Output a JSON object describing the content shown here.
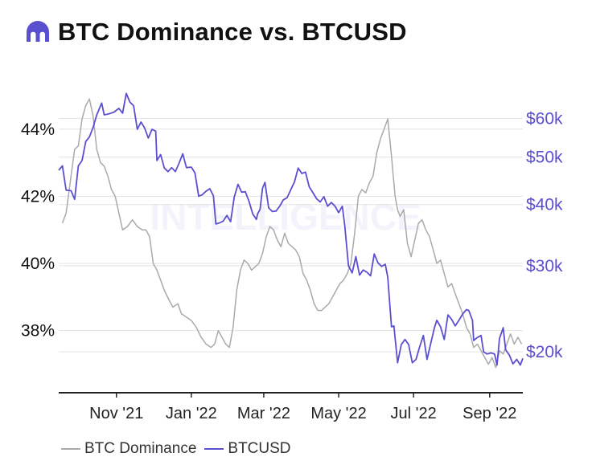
{
  "header": {
    "title": "BTC Dominance vs. BTCUSD",
    "logo_icon": "intelligence-logo-icon",
    "brand_color": "#5a4fcf"
  },
  "watermark": {
    "text": "INTELLIGENCE"
  },
  "chart_data": {
    "type": "line",
    "title": "BTC Dominance vs. BTCUSD",
    "x_ticks": [
      "Nov '21",
      "Jan '22",
      "Mar '22",
      "May '22",
      "Jul '22",
      "Sep '22"
    ],
    "x_range": [
      "2021-09-15",
      "2022-09-28"
    ],
    "y_left": {
      "label": "",
      "ticks": [
        "38%",
        "40%",
        "42%",
        "44%"
      ],
      "tick_values": [
        38,
        40,
        42,
        44
      ],
      "range": [
        36.15,
        45.98
      ]
    },
    "y_right": {
      "label": "",
      "scale": "log",
      "ticks": [
        "$20k",
        "$30k",
        "$40k",
        "$50k",
        "$60k"
      ],
      "tick_values": [
        20000,
        30000,
        40000,
        50000,
        60000
      ],
      "range": [
        16500,
        78000
      ]
    },
    "grid": true,
    "legend_position": "bottom-left",
    "legend": [
      {
        "name": "BTC Dominance",
        "color": "#aaaaaa",
        "axis": "left"
      },
      {
        "name": "BTCUSD",
        "color": "#5a4fcf",
        "axis": "right"
      }
    ],
    "series": [
      {
        "name": "BTC Dominance",
        "axis": "left",
        "color": "#aaaaaa",
        "points": [
          [
            "2021-09-18",
            41.2
          ],
          [
            "2021-09-21",
            41.5
          ],
          [
            "2021-09-25",
            42.6
          ],
          [
            "2021-09-28",
            43.4
          ],
          [
            "2021-10-01",
            43.5
          ],
          [
            "2021-10-04",
            44.3
          ],
          [
            "2021-10-07",
            44.7
          ],
          [
            "2021-10-10",
            44.9
          ],
          [
            "2021-10-13",
            44.4
          ],
          [
            "2021-10-16",
            43.4
          ],
          [
            "2021-10-19",
            43.0
          ],
          [
            "2021-10-22",
            42.9
          ],
          [
            "2021-10-25",
            42.6
          ],
          [
            "2021-10-28",
            42.2
          ],
          [
            "2021-10-31",
            42.0
          ],
          [
            "2021-11-03",
            41.5
          ],
          [
            "2021-11-06",
            41.0
          ],
          [
            "2021-11-10",
            41.1
          ],
          [
            "2021-11-14",
            41.3
          ],
          [
            "2021-11-18",
            41.1
          ],
          [
            "2021-11-22",
            41.0
          ],
          [
            "2021-11-25",
            41.0
          ],
          [
            "2021-11-28",
            40.8
          ],
          [
            "2021-12-01",
            40.0
          ],
          [
            "2021-12-04",
            39.8
          ],
          [
            "2021-12-07",
            39.5
          ],
          [
            "2021-12-10",
            39.2
          ],
          [
            "2021-12-14",
            38.9
          ],
          [
            "2021-12-17",
            38.7
          ],
          [
            "2021-12-21",
            38.8
          ],
          [
            "2021-12-24",
            38.5
          ],
          [
            "2021-12-28",
            38.4
          ],
          [
            "2022-01-01",
            38.3
          ],
          [
            "2022-01-05",
            38.1
          ],
          [
            "2022-01-09",
            37.8
          ],
          [
            "2022-01-13",
            37.6
          ],
          [
            "2022-01-17",
            37.5
          ],
          [
            "2022-01-20",
            37.6
          ],
          [
            "2022-01-23",
            38.0
          ],
          [
            "2022-01-26",
            37.8
          ],
          [
            "2022-01-29",
            37.6
          ],
          [
            "2022-02-01",
            37.5
          ],
          [
            "2022-02-04",
            38.1
          ],
          [
            "2022-02-07",
            39.2
          ],
          [
            "2022-02-10",
            39.8
          ],
          [
            "2022-02-13",
            40.1
          ],
          [
            "2022-02-16",
            40.0
          ],
          [
            "2022-02-19",
            39.8
          ],
          [
            "2022-02-22",
            39.9
          ],
          [
            "2022-02-25",
            40.0
          ],
          [
            "2022-02-28",
            40.3
          ],
          [
            "2022-03-03",
            40.8
          ],
          [
            "2022-03-06",
            41.1
          ],
          [
            "2022-03-09",
            41.0
          ],
          [
            "2022-03-12",
            40.7
          ],
          [
            "2022-03-15",
            40.5
          ],
          [
            "2022-03-18",
            40.9
          ],
          [
            "2022-03-21",
            40.6
          ],
          [
            "2022-03-24",
            40.5
          ],
          [
            "2022-03-27",
            40.4
          ],
          [
            "2022-03-30",
            40.2
          ],
          [
            "2022-04-02",
            39.7
          ],
          [
            "2022-04-05",
            39.5
          ],
          [
            "2022-04-08",
            39.2
          ],
          [
            "2022-04-11",
            38.8
          ],
          [
            "2022-04-14",
            38.6
          ],
          [
            "2022-04-17",
            38.6
          ],
          [
            "2022-04-20",
            38.7
          ],
          [
            "2022-04-23",
            38.8
          ],
          [
            "2022-04-26",
            39.0
          ],
          [
            "2022-04-29",
            39.2
          ],
          [
            "2022-05-02",
            39.4
          ],
          [
            "2022-05-05",
            39.5
          ],
          [
            "2022-05-08",
            39.7
          ],
          [
            "2022-05-11",
            40.0
          ],
          [
            "2022-05-14",
            40.9
          ],
          [
            "2022-05-17",
            42.0
          ],
          [
            "2022-05-20",
            42.2
          ],
          [
            "2022-05-23",
            42.1
          ],
          [
            "2022-05-26",
            42.4
          ],
          [
            "2022-05-29",
            42.6
          ],
          [
            "2022-06-01",
            43.3
          ],
          [
            "2022-06-04",
            43.7
          ],
          [
            "2022-06-07",
            44.0
          ],
          [
            "2022-06-10",
            44.3
          ],
          [
            "2022-06-13",
            43.2
          ],
          [
            "2022-06-16",
            42.0
          ],
          [
            "2022-06-18",
            41.6
          ],
          [
            "2022-06-20",
            41.4
          ],
          [
            "2022-06-23",
            41.6
          ],
          [
            "2022-06-26",
            40.6
          ],
          [
            "2022-06-29",
            40.2
          ],
          [
            "2022-07-02",
            40.7
          ],
          [
            "2022-07-05",
            41.2
          ],
          [
            "2022-07-08",
            41.3
          ],
          [
            "2022-07-11",
            41.0
          ],
          [
            "2022-07-14",
            40.8
          ],
          [
            "2022-07-17",
            40.4
          ],
          [
            "2022-07-20",
            40.0
          ],
          [
            "2022-07-23",
            40.1
          ],
          [
            "2022-07-26",
            39.7
          ],
          [
            "2022-07-29",
            39.3
          ],
          [
            "2022-08-01",
            39.4
          ],
          [
            "2022-08-04",
            39.1
          ],
          [
            "2022-08-07",
            38.8
          ],
          [
            "2022-08-10",
            38.5
          ],
          [
            "2022-08-13",
            38.1
          ],
          [
            "2022-08-16",
            37.9
          ],
          [
            "2022-08-19",
            37.5
          ],
          [
            "2022-08-22",
            37.6
          ],
          [
            "2022-08-25",
            37.4
          ],
          [
            "2022-08-28",
            37.2
          ],
          [
            "2022-08-31",
            37.0
          ],
          [
            "2022-09-03",
            37.2
          ],
          [
            "2022-09-06",
            36.9
          ],
          [
            "2022-09-09",
            37.4
          ],
          [
            "2022-09-12",
            37.3
          ],
          [
            "2022-09-15",
            37.6
          ],
          [
            "2022-09-18",
            37.9
          ],
          [
            "2022-09-21",
            37.6
          ],
          [
            "2022-09-24",
            37.8
          ],
          [
            "2022-09-27",
            37.6
          ]
        ]
      },
      {
        "name": "BTCUSD",
        "axis": "right",
        "color": "#5a4fcf",
        "points": [
          [
            "2021-09-15",
            47000
          ],
          [
            "2021-09-18",
            48000
          ],
          [
            "2021-09-21",
            42800
          ],
          [
            "2021-09-25",
            42700
          ],
          [
            "2021-09-28",
            41000
          ],
          [
            "2021-10-01",
            48000
          ],
          [
            "2021-10-04",
            49200
          ],
          [
            "2021-10-07",
            53800
          ],
          [
            "2021-10-10",
            55000
          ],
          [
            "2021-10-13",
            57500
          ],
          [
            "2021-10-16",
            61000
          ],
          [
            "2021-10-20",
            64500
          ],
          [
            "2021-10-22",
            61000
          ],
          [
            "2021-10-26",
            61300
          ],
          [
            "2021-10-30",
            61800
          ],
          [
            "2021-11-03",
            62900
          ],
          [
            "2021-11-06",
            61500
          ],
          [
            "2021-11-09",
            67500
          ],
          [
            "2021-11-12",
            64800
          ],
          [
            "2021-11-15",
            63700
          ],
          [
            "2021-11-18",
            57000
          ],
          [
            "2021-11-21",
            59000
          ],
          [
            "2021-11-24",
            57300
          ],
          [
            "2021-11-27",
            54700
          ],
          [
            "2021-11-30",
            57000
          ],
          [
            "2021-12-03",
            56500
          ],
          [
            "2021-12-04",
            49200
          ],
          [
            "2021-12-07",
            50600
          ],
          [
            "2021-12-10",
            47500
          ],
          [
            "2021-12-13",
            46700
          ],
          [
            "2021-12-16",
            47600
          ],
          [
            "2021-12-19",
            46700
          ],
          [
            "2021-12-22",
            48600
          ],
          [
            "2021-12-25",
            50800
          ],
          [
            "2021-12-28",
            47600
          ],
          [
            "2022-01-01",
            47700
          ],
          [
            "2022-01-04",
            46400
          ],
          [
            "2022-01-07",
            41600
          ],
          [
            "2022-01-10",
            41900
          ],
          [
            "2022-01-13",
            42600
          ],
          [
            "2022-01-16",
            43100
          ],
          [
            "2022-01-19",
            41700
          ],
          [
            "2022-01-21",
            36500
          ],
          [
            "2022-01-24",
            36700
          ],
          [
            "2022-01-27",
            37000
          ],
          [
            "2022-01-30",
            38000
          ],
          [
            "2022-02-02",
            36900
          ],
          [
            "2022-02-05",
            41500
          ],
          [
            "2022-02-08",
            44000
          ],
          [
            "2022-02-11",
            42400
          ],
          [
            "2022-02-14",
            42500
          ],
          [
            "2022-02-17",
            40600
          ],
          [
            "2022-02-20",
            38300
          ],
          [
            "2022-02-23",
            37300
          ],
          [
            "2022-02-24",
            38300
          ],
          [
            "2022-02-26",
            39100
          ],
          [
            "2022-02-28",
            43200
          ],
          [
            "2022-03-02",
            44400
          ],
          [
            "2022-03-05",
            39400
          ],
          [
            "2022-03-08",
            38700
          ],
          [
            "2022-03-11",
            38800
          ],
          [
            "2022-03-14",
            39700
          ],
          [
            "2022-03-17",
            40900
          ],
          [
            "2022-03-20",
            41300
          ],
          [
            "2022-03-23",
            42900
          ],
          [
            "2022-03-26",
            44500
          ],
          [
            "2022-03-29",
            47500
          ],
          [
            "2022-04-01",
            46300
          ],
          [
            "2022-04-04",
            46600
          ],
          [
            "2022-04-07",
            43500
          ],
          [
            "2022-04-10",
            42300
          ],
          [
            "2022-04-13",
            41100
          ],
          [
            "2022-04-16",
            40500
          ],
          [
            "2022-04-19",
            41500
          ],
          [
            "2022-04-22",
            39700
          ],
          [
            "2022-04-25",
            40400
          ],
          [
            "2022-04-28",
            39700
          ],
          [
            "2022-05-01",
            38500
          ],
          [
            "2022-05-04",
            39700
          ],
          [
            "2022-05-06",
            36100
          ],
          [
            "2022-05-09",
            30000
          ],
          [
            "2022-05-12",
            29000
          ],
          [
            "2022-05-15",
            31300
          ],
          [
            "2022-05-18",
            28700
          ],
          [
            "2022-05-21",
            29400
          ],
          [
            "2022-05-24",
            29100
          ],
          [
            "2022-05-27",
            28600
          ],
          [
            "2022-05-30",
            31700
          ],
          [
            "2022-06-02",
            30400
          ],
          [
            "2022-06-05",
            29900
          ],
          [
            "2022-06-08",
            30200
          ],
          [
            "2022-06-10",
            28400
          ],
          [
            "2022-06-13",
            22500
          ],
          [
            "2022-06-15",
            22600
          ],
          [
            "2022-06-18",
            19000
          ],
          [
            "2022-06-21",
            20700
          ],
          [
            "2022-06-24",
            21200
          ],
          [
            "2022-06-27",
            20700
          ],
          [
            "2022-06-30",
            19000
          ],
          [
            "2022-07-03",
            19300
          ],
          [
            "2022-07-06",
            20500
          ],
          [
            "2022-07-09",
            21600
          ],
          [
            "2022-07-12",
            19300
          ],
          [
            "2022-07-15",
            20800
          ],
          [
            "2022-07-18",
            22400
          ],
          [
            "2022-07-20",
            23200
          ],
          [
            "2022-07-23",
            22500
          ],
          [
            "2022-07-26",
            21200
          ],
          [
            "2022-07-29",
            23800
          ],
          [
            "2022-08-01",
            23300
          ],
          [
            "2022-08-04",
            22600
          ],
          [
            "2022-08-07",
            23200
          ],
          [
            "2022-08-10",
            23900
          ],
          [
            "2022-08-13",
            24400
          ],
          [
            "2022-08-15",
            24300
          ],
          [
            "2022-08-18",
            23200
          ],
          [
            "2022-08-19",
            21100
          ],
          [
            "2022-08-22",
            21400
          ],
          [
            "2022-08-25",
            21600
          ],
          [
            "2022-08-27",
            20000
          ],
          [
            "2022-08-30",
            19800
          ],
          [
            "2022-09-02",
            19900
          ],
          [
            "2022-09-05",
            19800
          ],
          [
            "2022-09-07",
            18800
          ],
          [
            "2022-09-09",
            21300
          ],
          [
            "2022-09-12",
            22400
          ],
          [
            "2022-09-14",
            20200
          ],
          [
            "2022-09-17",
            19700
          ],
          [
            "2022-09-20",
            18900
          ],
          [
            "2022-09-23",
            19300
          ],
          [
            "2022-09-26",
            18800
          ],
          [
            "2022-09-28",
            19400
          ]
        ]
      }
    ]
  }
}
